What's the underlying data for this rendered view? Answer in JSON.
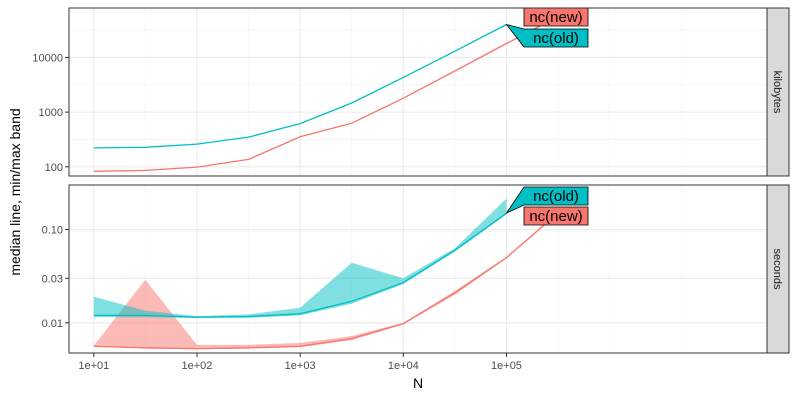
{
  "chart_data": {
    "type": "line",
    "title": "",
    "xlabel": "N",
    "ylabel": "median line, min/max band",
    "x_scale": "log10",
    "x_ticks": [
      10,
      100,
      1000,
      10000,
      100000
    ],
    "x_tick_labels": [
      "1e+01",
      "1e+02",
      "1e+03",
      "1e+04",
      "1e+05"
    ],
    "grid": true,
    "legend": "none",
    "colors": {
      "nc(new)": "#F8766D",
      "nc(old)": "#00BFC4"
    },
    "panels": [
      {
        "strip": "kilobytes",
        "y_scale": "log10",
        "y_ticks": [
          100,
          1000,
          10000
        ],
        "y_tick_labels": [
          "100",
          "1000",
          "10000"
        ],
        "series": [
          {
            "name": "nc(new)",
            "x": [
              10,
              31.6,
              100,
              316,
              1000,
              3162,
              10000,
              31623,
              100000,
              316228
            ],
            "median": [
              83,
              86,
              99,
              137,
              354,
              627,
              1795,
              5636,
              17933,
              56000
            ]
          },
          {
            "name": "nc(old)",
            "x": [
              10,
              31.6,
              100,
              316,
              1000,
              3162,
              10000,
              31623,
              100000
            ],
            "median": [
              222,
              228,
              260,
              349,
              618,
              1470,
              4320,
              13000,
              40000
            ]
          }
        ],
        "labels": [
          {
            "text": "nc(new)",
            "series": "nc(new)"
          },
          {
            "text": "nc(old)",
            "series": "nc(old)"
          }
        ]
      },
      {
        "strip": "seconds",
        "y_scale": "log10",
        "y_ticks": [
          0.01,
          0.03,
          0.1
        ],
        "y_tick_labels": [
          "0.01",
          "0.03",
          "0.10"
        ],
        "series": [
          {
            "name": "nc(new)",
            "x": [
              10,
              31.6,
              100,
              316,
              1000,
              3162,
              10000,
              31623,
              100000,
              316228
            ],
            "median": [
              0.0056,
              0.0054,
              0.0053,
              0.0054,
              0.0056,
              0.0068,
              0.0098,
              0.021,
              0.05,
              0.15
            ],
            "min": [
              0.0056,
              0.0053,
              0.0052,
              0.0053,
              0.0055,
              0.0065,
              0.0096,
              0.02,
              0.049,
              0.148
            ],
            "max": [
              0.0057,
              0.029,
              0.0058,
              0.0058,
              0.0061,
              0.0072,
              0.01,
              0.022,
              0.051,
              0.155
            ]
          },
          {
            "name": "nc(old)",
            "x": [
              10,
              31.6,
              100,
              316,
              1000,
              3162,
              10000,
              31623,
              100000
            ],
            "median": [
              0.012,
              0.012,
              0.0115,
              0.0117,
              0.0125,
              0.017,
              0.027,
              0.06,
              0.15
            ],
            "min": [
              0.0115,
              0.0115,
              0.0113,
              0.0113,
              0.012,
              0.016,
              0.026,
              0.058,
              0.145
            ],
            "max": [
              0.019,
              0.0135,
              0.0118,
              0.0123,
              0.0145,
              0.044,
              0.03,
              0.063,
              0.215
            ]
          }
        ],
        "labels": [
          {
            "text": "nc(old)",
            "series": "nc(old)"
          },
          {
            "text": "nc(new)",
            "series": "nc(new)"
          }
        ]
      }
    ]
  }
}
